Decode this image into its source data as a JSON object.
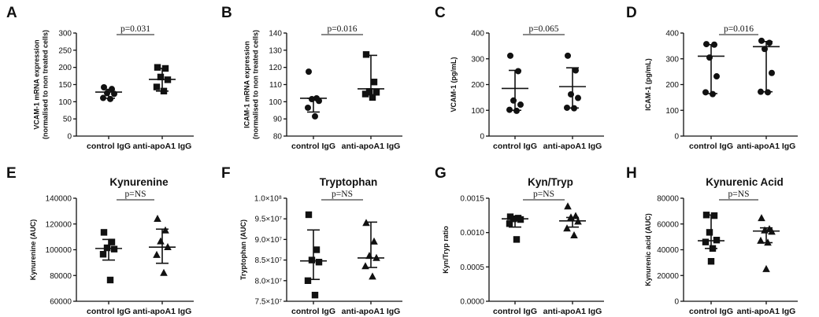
{
  "chart_data": [
    {
      "letter": "A",
      "type": "scatter",
      "title": "",
      "ylabel": [
        "VCAM-1 mRNA expression",
        "(normalised to non treated cells)"
      ],
      "ylim": [
        0,
        300
      ],
      "ticks": [
        0,
        50,
        100,
        150,
        200,
        250,
        300
      ],
      "tick_labels": [
        "0",
        "50",
        "100",
        "150",
        "200",
        "250",
        "300"
      ],
      "categories": [
        "control IgG",
        "anti-apoA1 IgG"
      ],
      "pvalue": "p=0.031",
      "groups": [
        {
          "name": "control IgG",
          "marker": "circle",
          "values": [
            142,
            137,
            125,
            123,
            111,
            108
          ],
          "center": 128,
          "lower": 110,
          "upper": 136
        },
        {
          "name": "anti-apoA1 IgG",
          "marker": "square",
          "values": [
            200,
            197,
            172,
            164,
            143,
            131
          ],
          "center": 165,
          "lower": 131,
          "upper": 197
        }
      ]
    },
    {
      "letter": "B",
      "type": "scatter",
      "title": "",
      "ylabel": [
        "ICAM-1 mRNA expression",
        "(normalised to non treated cells)"
      ],
      "ylim": [
        80,
        140
      ],
      "ticks": [
        80,
        90,
        100,
        110,
        120,
        130,
        140
      ],
      "tick_labels": [
        "80",
        "90",
        "100",
        "110",
        "120",
        "130",
        "140"
      ],
      "categories": [
        "control IgG",
        "anti-apoA1 IgG"
      ],
      "pvalue": "p=0.016",
      "groups": [
        {
          "name": "control IgG",
          "marker": "circle",
          "values": [
            117.5,
            102,
            101.5,
            100.5,
            96.5,
            91.5
          ],
          "center": 102,
          "lower": 94,
          "upper": 102
        },
        {
          "name": "anti-apoA1 IgG",
          "marker": "square",
          "values": [
            127.5,
            111.5,
            106,
            105.5,
            104.5,
            102.5
          ],
          "center": 107.5,
          "lower": 104,
          "upper": 127
        }
      ]
    },
    {
      "letter": "C",
      "type": "scatter",
      "title": "",
      "ylabel": [
        "VCAM-1 (pg/mL)"
      ],
      "ylim": [
        0,
        400
      ],
      "ticks": [
        0,
        100,
        200,
        300,
        400
      ],
      "tick_labels": [
        "0",
        "100",
        "200",
        "300",
        "400"
      ],
      "categories": [
        "control IgG",
        "anti-apoA1 IgG"
      ],
      "pvalue": "p=0.065",
      "groups": [
        {
          "name": "control IgG",
          "marker": "circle",
          "values": [
            312,
            252,
            138,
            122,
            102,
            98
          ],
          "center": 185,
          "lower": 100,
          "upper": 255
        },
        {
          "name": "anti-apoA1 IgG",
          "marker": "circle",
          "values": [
            312,
            255,
            162,
            148,
            110,
            108
          ],
          "center": 192,
          "lower": 109,
          "upper": 265
        }
      ]
    },
    {
      "letter": "D",
      "type": "scatter",
      "title": "",
      "ylabel": [
        "ICAM-1 (pg/mL)"
      ],
      "ylim": [
        0,
        400
      ],
      "ticks": [
        0,
        100,
        200,
        300,
        400
      ],
      "tick_labels": [
        "0",
        "100",
        "200",
        "300",
        "400"
      ],
      "categories": [
        "control IgG",
        "anti-apoA1 IgG"
      ],
      "pvalue": "p=0.016",
      "groups": [
        {
          "name": "control IgG",
          "marker": "circle",
          "values": [
            357,
            355,
            305,
            232,
            170,
            163
          ],
          "center": 310,
          "lower": 165,
          "upper": 355
        },
        {
          "name": "anti-apoA1 IgG",
          "marker": "circle",
          "values": [
            370,
            362,
            338,
            245,
            172,
            170
          ],
          "center": 347,
          "lower": 172,
          "upper": 367
        }
      ]
    },
    {
      "letter": "E",
      "type": "scatter",
      "title": "Kynurenine",
      "ylabel": [
        "Kynurenine (AUC)"
      ],
      "ylim": [
        60000,
        140000
      ],
      "ticks": [
        60000,
        80000,
        100000,
        120000,
        140000
      ],
      "tick_labels": [
        "60000",
        "80000",
        "100000",
        "120000",
        "140000"
      ],
      "categories": [
        "control IgG",
        "anti-apoA1 IgG"
      ],
      "pvalue": "p=NS",
      "groups": [
        {
          "name": "control IgG",
          "marker": "square",
          "values": [
            113500,
            106000,
            101500,
            100500,
            96500,
            76500
          ],
          "center": 101000,
          "lower": 92000,
          "upper": 108000
        },
        {
          "name": "anti-apoA1 IgG",
          "marker": "triangle",
          "values": [
            124000,
            115000,
            106500,
            102000,
            96000,
            82000
          ],
          "center": 102000,
          "lower": 89500,
          "upper": 116000
        }
      ]
    },
    {
      "letter": "F",
      "type": "scatter",
      "title": "Tryptophan",
      "ylabel": [
        "Tryptophan (AUC)"
      ],
      "ylim": [
        75000000,
        100000000
      ],
      "ticks": [
        75000000,
        80000000,
        85000000,
        90000000,
        95000000,
        100000000
      ],
      "tick_labels": [
        "7.5×10⁷",
        "8.0×10⁷",
        "8.5×10⁷",
        "9.0×10⁷",
        "9.5×10⁷",
        "1.0×10⁸"
      ],
      "categories": [
        "control IgG",
        "anti-apoA1 IgG"
      ],
      "pvalue": "p=NS",
      "groups": [
        {
          "name": "control IgG",
          "marker": "square",
          "values": [
            96000000,
            87500000,
            85000000,
            84500000,
            80000000,
            76500000
          ],
          "center": 84800000,
          "lower": 80300000,
          "upper": 92300000
        },
        {
          "name": "anti-apoA1 IgG",
          "marker": "triangle",
          "values": [
            94000000,
            89500000,
            86000000,
            85500000,
            83500000,
            81000000
          ],
          "center": 85500000,
          "lower": 83200000,
          "upper": 94200000
        }
      ]
    },
    {
      "letter": "G",
      "type": "scatter",
      "title": "Kyn/Tryp",
      "ylabel": [
        "Kyn/Tryp ratio"
      ],
      "ylim": [
        0,
        0.0015
      ],
      "ticks": [
        0,
        0.0005,
        0.001,
        0.0015
      ],
      "tick_labels": [
        "0.0000",
        "0.0005",
        "0.0010",
        "0.0015"
      ],
      "categories": [
        "control IgG",
        "anti-apoA1 IgG"
      ],
      "pvalue": "p=NS",
      "groups": [
        {
          "name": "control IgG",
          "marker": "square",
          "values": [
            0.00123,
            0.00121,
            0.0012,
            0.00119,
            0.00113,
            0.0009
          ],
          "center": 0.0012,
          "lower": 0.00108,
          "upper": 0.00123
        },
        {
          "name": "anti-apoA1 IgG",
          "marker": "triangle",
          "values": [
            0.00138,
            0.00124,
            0.00122,
            0.00116,
            0.00106,
            0.00096
          ],
          "center": 0.00117,
          "lower": 0.00108,
          "upper": 0.00122
        }
      ]
    },
    {
      "letter": "H",
      "type": "scatter",
      "title": "Kynurenic Acid",
      "ylabel": [
        "Kynurenic acid (AUC)"
      ],
      "ylim": [
        0,
        80000
      ],
      "ticks": [
        0,
        20000,
        40000,
        60000,
        80000
      ],
      "tick_labels": [
        "0",
        "20000",
        "40000",
        "60000",
        "80000"
      ],
      "categories": [
        "control IgG",
        "anti-apoA1 IgG"
      ],
      "pvalue": "p=NS",
      "groups": [
        {
          "name": "control IgG",
          "marker": "square",
          "values": [
            67000,
            66500,
            53500,
            47500,
            46000,
            41000,
            31000
          ],
          "center": 47000,
          "lower": 41000,
          "upper": 67000
        },
        {
          "name": "anti-apoA1 IgG",
          "marker": "triangle",
          "values": [
            64500,
            56000,
            55000,
            54000,
            47000,
            45500,
            25000
          ],
          "center": 54500,
          "lower": 45500,
          "upper": 57000
        }
      ]
    }
  ]
}
